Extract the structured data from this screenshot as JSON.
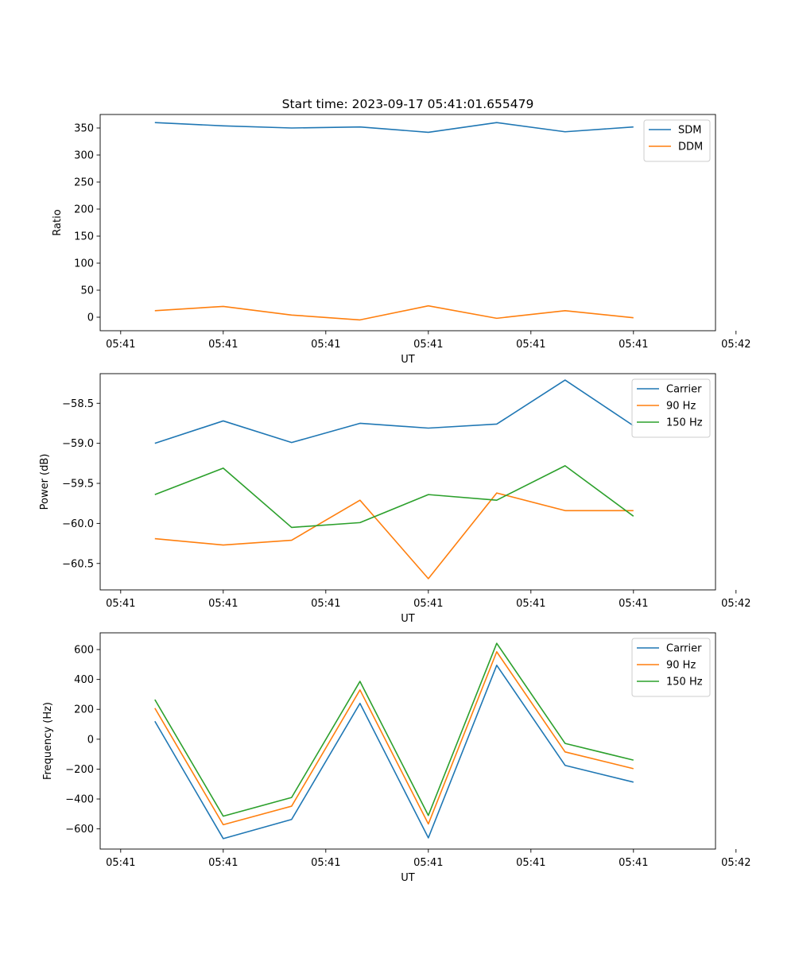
{
  "chart_data": [
    {
      "type": "line",
      "title": "Start time: 2023-09-17 05:41:01.655479",
      "xlabel": "UT",
      "ylabel": "Ratio",
      "xlim": [
        -0.3,
        8.7
      ],
      "ylim": [
        -25,
        375
      ],
      "x": [
        0.5,
        1.5,
        2.5,
        3.5,
        4.5,
        5.5,
        6.5,
        7.5
      ],
      "x_ticks": [
        0,
        1.5,
        3,
        4.5,
        6,
        7.5,
        9
      ],
      "x_tick_labels": [
        "05:41",
        "05:41",
        "05:41",
        "05:41",
        "05:41",
        "05:41",
        "05:42"
      ],
      "y_ticks": [
        0,
        50,
        100,
        150,
        200,
        250,
        300,
        350
      ],
      "y_tick_labels": [
        "0",
        "50",
        "100",
        "150",
        "200",
        "250",
        "300",
        "350"
      ],
      "legend_position": "top-right",
      "series": [
        {
          "name": "SDM",
          "color": "#1f77b4",
          "values": [
            360,
            354,
            350,
            352,
            342,
            360,
            343,
            352
          ]
        },
        {
          "name": "DDM",
          "color": "#ff7f0e",
          "values": [
            12,
            20,
            4,
            -5,
            21,
            -2,
            12,
            -1
          ]
        }
      ]
    },
    {
      "type": "line",
      "title": "",
      "xlabel": "UT",
      "ylabel": "Power (dB)",
      "xlim": [
        -0.3,
        8.7
      ],
      "ylim": [
        -60.83,
        -58.13
      ],
      "x": [
        0.5,
        1.5,
        2.5,
        3.5,
        4.5,
        5.5,
        6.5,
        7.5
      ],
      "x_ticks": [
        0,
        1.5,
        3,
        4.5,
        6,
        7.5,
        9
      ],
      "x_tick_labels": [
        "05:41",
        "05:41",
        "05:41",
        "05:41",
        "05:41",
        "05:41",
        "05:42"
      ],
      "y_ticks": [
        -58.5,
        -59.0,
        -59.5,
        -60.0,
        -60.5
      ],
      "y_tick_labels": [
        "−58.5",
        "−59.0",
        "−59.5",
        "−60.0",
        "−60.5"
      ],
      "legend_position": "top-right",
      "series": [
        {
          "name": "Carrier",
          "color": "#1f77b4",
          "values": [
            -59.0,
            -58.72,
            -58.99,
            -58.75,
            -58.81,
            -58.76,
            -58.21,
            -58.78
          ]
        },
        {
          "name": "90 Hz",
          "color": "#ff7f0e",
          "values": [
            -60.19,
            -60.27,
            -60.21,
            -59.71,
            -60.69,
            -59.62,
            -59.84,
            -59.84
          ]
        },
        {
          "name": "150 Hz",
          "color": "#2ca02c",
          "values": [
            -59.64,
            -59.31,
            -60.05,
            -59.99,
            -59.64,
            -59.71,
            -59.28,
            -59.91
          ]
        }
      ]
    },
    {
      "type": "line",
      "title": "",
      "xlabel": "UT",
      "ylabel": "Frequency (Hz)",
      "xlim": [
        -0.3,
        8.7
      ],
      "ylim": [
        -735,
        712
      ],
      "x": [
        0.5,
        1.5,
        2.5,
        3.5,
        4.5,
        5.5,
        6.5,
        7.5
      ],
      "x_ticks": [
        0,
        1.5,
        3,
        4.5,
        6,
        7.5,
        9
      ],
      "x_tick_labels": [
        "05:41",
        "05:41",
        "05:41",
        "05:41",
        "05:41",
        "05:41",
        "05:42"
      ],
      "y_ticks": [
        600,
        400,
        200,
        0,
        -200,
        -400,
        -600
      ],
      "y_tick_labels": [
        "600",
        "400",
        "200",
        "0",
        "−200",
        "−400",
        "−600"
      ],
      "legend_position": "top-right",
      "series": [
        {
          "name": "Carrier",
          "color": "#1f77b4",
          "values": [
            120,
            -665,
            -537,
            240,
            -660,
            495,
            -175,
            -287
          ]
        },
        {
          "name": "90 Hz",
          "color": "#ff7f0e",
          "values": [
            208,
            -572,
            -448,
            330,
            -567,
            585,
            -85,
            -197
          ]
        },
        {
          "name": "150 Hz",
          "color": "#2ca02c",
          "values": [
            265,
            -515,
            -390,
            387,
            -510,
            642,
            -28,
            -140
          ]
        }
      ]
    }
  ]
}
